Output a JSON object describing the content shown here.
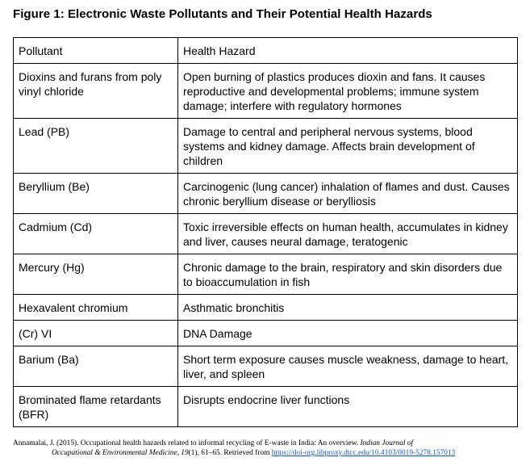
{
  "title": "Figure 1: Electronic Waste Pollutants and Their Potential Health Hazards",
  "table": {
    "headers": [
      "Pollutant",
      "Health Hazard"
    ],
    "rows": [
      {
        "pollutant": "Dioxins and furans from poly vinyl chloride",
        "hazard": "Open burning of plastics produces dioxin and fans. It causes reproductive and developmental problems; immune system damage; interfere with regulatory hormones"
      },
      {
        "pollutant": "Lead (PB)",
        "hazard": "Damage to central and peripheral nervous systems, blood systems and kidney damage. Affects brain development of children"
      },
      {
        "pollutant": "Beryllium (Be)",
        "hazard": "Carcinogenic (lung cancer) inhalation of flames and dust. Causes chronic beryllium disease or berylliosis"
      },
      {
        "pollutant": "Cadmium (Cd)",
        "hazard": "Toxic irreversible effects on human health, accumulates in kidney and liver, causes neural damage, teratogenic"
      },
      {
        "pollutant": "Mercury (Hg)",
        "hazard": "Chronic damage to the brain, respiratory and skin disorders due to bioaccumulation in fish"
      },
      {
        "pollutant": "Hexavalent chromium",
        "hazard": "Asthmatic bronchitis"
      },
      {
        "pollutant": "(Cr) VI",
        "hazard": "DNA Damage"
      },
      {
        "pollutant": "Barium (Ba)",
        "hazard": "Short term exposure causes muscle weakness, damage to heart, liver, and spleen"
      },
      {
        "pollutant": "Brominated flame retardants (BFR)",
        "hazard": "Disrupts endocrine liver functions"
      }
    ]
  },
  "citation": {
    "part1": "Annamalai, J. (2015). Occupational health hazards related to informal recycling of E-waste in India: An overview. ",
    "journal_a": "Indian Journal of",
    "journal_b": "Occupational & Environmental Medicine, 19",
    "issue_pages": "(1), 61–65. Retrieved from ",
    "link": "https://doi-org.libproxy.dtcc.edu/10.4103/0019-5278.157013"
  }
}
